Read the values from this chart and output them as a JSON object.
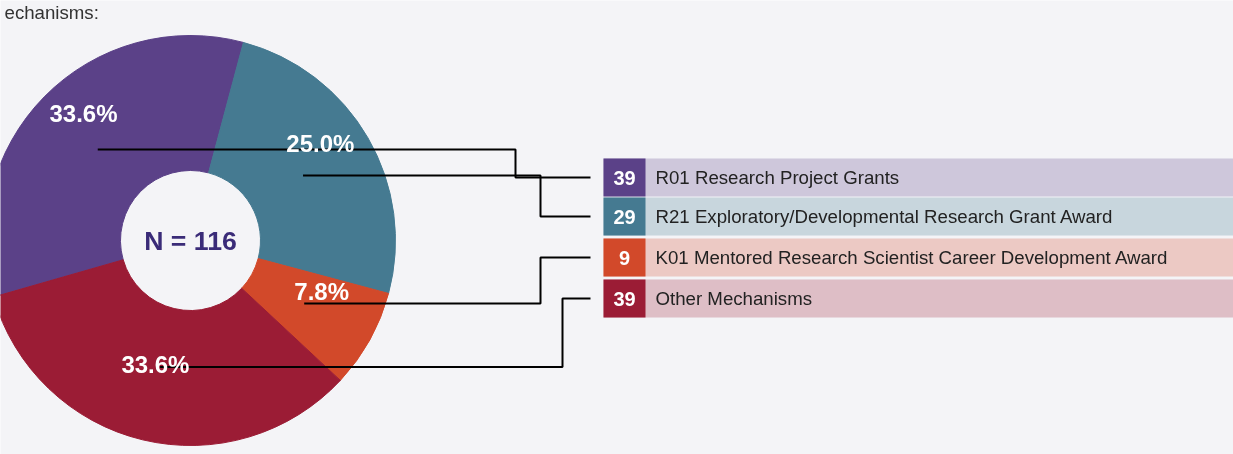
{
  "chart_data": {
    "type": "donut",
    "title": "echanisms:",
    "categories": [
      "R01 Research Project Grants",
      "R21 Exploratory/Developmental Research Grant Award",
      "K01 Mentored Research Scientist Career Development Award",
      "Other Mechanisms"
    ],
    "values": [
      33.6,
      25.0,
      7.8,
      33.6
    ],
    "colors": [
      "#5b4188",
      "#457a91",
      "#d2492a",
      "#9b1c35"
    ],
    "value_labels": [
      "33.6%",
      "25.0%",
      "7.8%",
      "33.6%"
    ],
    "annotations": [
      "N = 116",
      "39",
      "29",
      "9",
      "39"
    ],
    "legend": "right"
  }
}
